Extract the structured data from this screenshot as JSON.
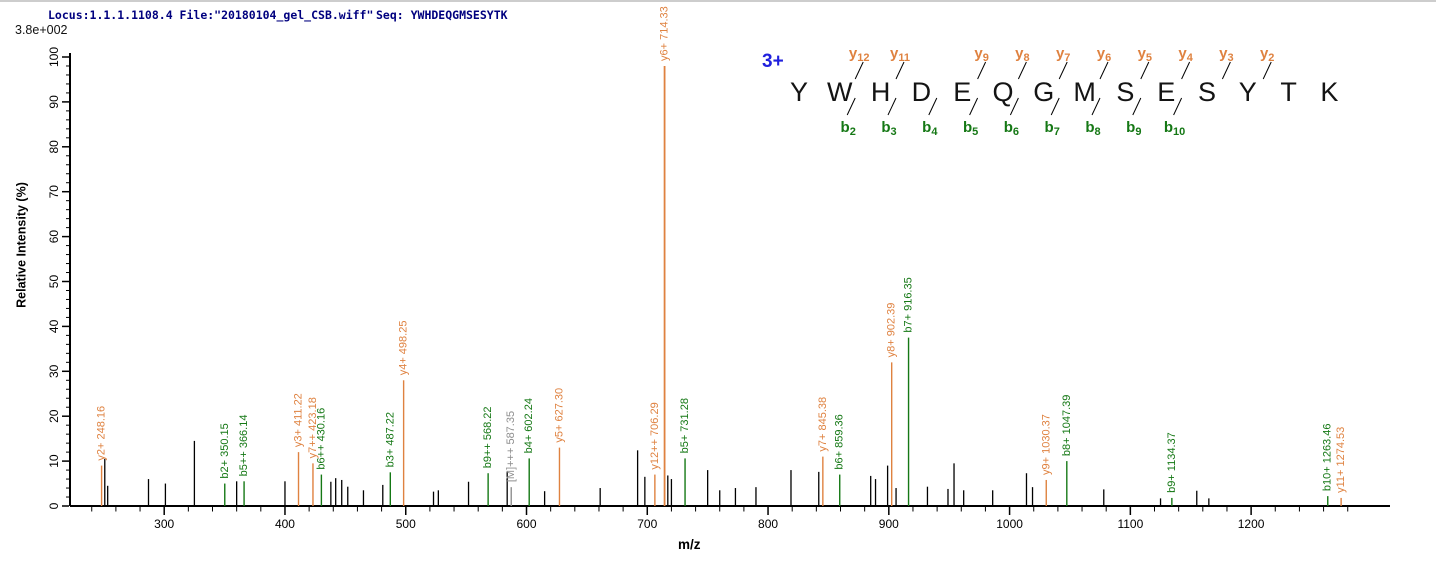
{
  "header": {
    "locus_file": "Locus:1.1.1.1108.4 File:\"20180104_gel_CSB.wiff\"",
    "seq": "Seq: YWHDEQGMSESYTK",
    "max_intensity": "3.8e+002"
  },
  "colors": {
    "y_ion": "#df8240",
    "b_ion": "#157815",
    "precursor": "#8f8f8f",
    "peak": "#000000",
    "header_text": "#00007f",
    "charge_label": "#2020dd",
    "axis": "#000000"
  },
  "chart_data": {
    "type": "bar",
    "subtype": "ms2-mass-spectrum",
    "title": "",
    "xlabel": "m/z",
    "ylabel": "Relative  Intensity (%)",
    "x_range": [
      222,
      1315
    ],
    "ylim": [
      0,
      100
    ],
    "x_ticks_major": [
      300,
      400,
      500,
      600,
      700,
      800,
      900,
      1000,
      1100,
      1200
    ],
    "x_minor_step": 20,
    "y_ticks_major": [
      0,
      10,
      20,
      30,
      40,
      50,
      60,
      70,
      80,
      90,
      100
    ],
    "y_minor_step": 2,
    "grid": false,
    "legend": "none",
    "annotated_peaks": [
      {
        "label": "y2+ 248.16",
        "mz": 248.16,
        "intensity": 9,
        "ion": "y"
      },
      {
        "label": "b2+ 350.15",
        "mz": 350.15,
        "intensity": 5,
        "ion": "b"
      },
      {
        "label": "b5++ 366.14",
        "mz": 366.14,
        "intensity": 5.5,
        "ion": "b"
      },
      {
        "label": "y3+ 411.22",
        "mz": 411.22,
        "intensity": 12,
        "ion": "y"
      },
      {
        "label": "y7++ 423.18",
        "mz": 423.18,
        "intensity": 9.5,
        "ion": "y"
      },
      {
        "label": "b6++ 430.16",
        "mz": 430.16,
        "intensity": 7,
        "ion": "b"
      },
      {
        "label": "b3+ 487.22",
        "mz": 487.22,
        "intensity": 7.5,
        "ion": "b"
      },
      {
        "label": "y4+ 498.25",
        "mz": 498.25,
        "intensity": 28,
        "ion": "y"
      },
      {
        "label": "b9++ 568.22",
        "mz": 568.22,
        "intensity": 7.3,
        "ion": "b"
      },
      {
        "label": "[M]+++ 587.35",
        "mz": 587.35,
        "intensity": 4.2,
        "ion": "M"
      },
      {
        "label": "b4+ 602.24",
        "mz": 602.24,
        "intensity": 10.6,
        "ion": "b"
      },
      {
        "label": "y5+ 627.30",
        "mz": 627.3,
        "intensity": 13,
        "ion": "y"
      },
      {
        "label": "y12++ 706.29",
        "mz": 706.29,
        "intensity": 7,
        "ion": "y"
      },
      {
        "label": "y6+ 714.33",
        "mz": 714.33,
        "intensity": 98,
        "ion": "y"
      },
      {
        "label": "b5+ 731.28",
        "mz": 731.28,
        "intensity": 10.6,
        "ion": "b"
      },
      {
        "label": "y7+ 845.38",
        "mz": 845.38,
        "intensity": 11,
        "ion": "y"
      },
      {
        "label": "b6+ 859.36",
        "mz": 859.36,
        "intensity": 7,
        "ion": "b"
      },
      {
        "label": "y8+ 902.39",
        "mz": 902.39,
        "intensity": 32,
        "ion": "y"
      },
      {
        "label": "b7+ 916.35",
        "mz": 916.35,
        "intensity": 37.5,
        "ion": "b"
      },
      {
        "label": "y9+ 1030.37",
        "mz": 1030.37,
        "intensity": 5.8,
        "ion": "y"
      },
      {
        "label": "b8+ 1047.39",
        "mz": 1047.39,
        "intensity": 10,
        "ion": "b"
      },
      {
        "label": "b9+ 1134.37",
        "mz": 1134.37,
        "intensity": 1.8,
        "ion": "b"
      },
      {
        "label": "b10+ 1263.46",
        "mz": 1263.46,
        "intensity": 2.2,
        "ion": "b"
      },
      {
        "label": "y11+ 1274.53",
        "mz": 1274.53,
        "intensity": 1.8,
        "ion": "y"
      }
    ],
    "unannotated_peaks": [
      [
        250.8,
        10.5
      ],
      [
        253.2,
        4.5
      ],
      [
        287,
        6
      ],
      [
        301,
        5
      ],
      [
        325,
        14.5
      ],
      [
        360,
        5.5
      ],
      [
        400,
        5.5
      ],
      [
        438,
        5.4
      ],
      [
        442,
        6.2
      ],
      [
        447,
        5.8
      ],
      [
        452,
        4.3
      ],
      [
        465,
        3.5
      ],
      [
        481,
        4.7
      ],
      [
        523,
        3.2
      ],
      [
        527,
        3.5
      ],
      [
        552,
        5.4
      ],
      [
        584,
        7.8
      ],
      [
        615,
        3.3
      ],
      [
        661,
        4
      ],
      [
        692,
        12.4
      ],
      [
        698,
        6.5
      ],
      [
        717,
        6.8
      ],
      [
        720,
        6
      ],
      [
        750,
        8
      ],
      [
        760,
        3.5
      ],
      [
        773,
        4
      ],
      [
        790,
        4.2
      ],
      [
        819,
        8
      ],
      [
        842,
        7.6
      ],
      [
        885,
        6.7
      ],
      [
        889,
        6
      ],
      [
        899,
        9
      ],
      [
        906,
        4
      ],
      [
        932,
        4.3
      ],
      [
        949,
        3.8
      ],
      [
        954,
        9.5
      ],
      [
        962,
        3.5
      ],
      [
        986,
        3.5
      ],
      [
        1014,
        7.3
      ],
      [
        1019,
        4.2
      ],
      [
        1078,
        3.7
      ],
      [
        1125,
        1.7
      ],
      [
        1155,
        3.4
      ],
      [
        1165,
        1.7
      ]
    ]
  },
  "sequence_panel": {
    "charge": "3+",
    "residues": [
      "Y",
      "W",
      "H",
      "D",
      "E",
      "Q",
      "G",
      "M",
      "S",
      "E",
      "S",
      "Y",
      "T",
      "K"
    ],
    "y_ions": [
      {
        "n": 12,
        "after": 2
      },
      {
        "n": 11,
        "after": 3
      },
      {
        "n": 9,
        "after": 5
      },
      {
        "n": 8,
        "after": 6
      },
      {
        "n": 7,
        "after": 7
      },
      {
        "n": 6,
        "after": 8
      },
      {
        "n": 5,
        "after": 9
      },
      {
        "n": 4,
        "after": 10
      },
      {
        "n": 3,
        "after": 11
      },
      {
        "n": 2,
        "after": 12
      }
    ],
    "b_ions": [
      {
        "n": 2,
        "after": 2
      },
      {
        "n": 3,
        "after": 3
      },
      {
        "n": 4,
        "after": 4
      },
      {
        "n": 5,
        "after": 5
      },
      {
        "n": 6,
        "after": 6
      },
      {
        "n": 7,
        "after": 7
      },
      {
        "n": 8,
        "after": 8
      },
      {
        "n": 9,
        "after": 9
      },
      {
        "n": 10,
        "after": 10
      }
    ]
  }
}
